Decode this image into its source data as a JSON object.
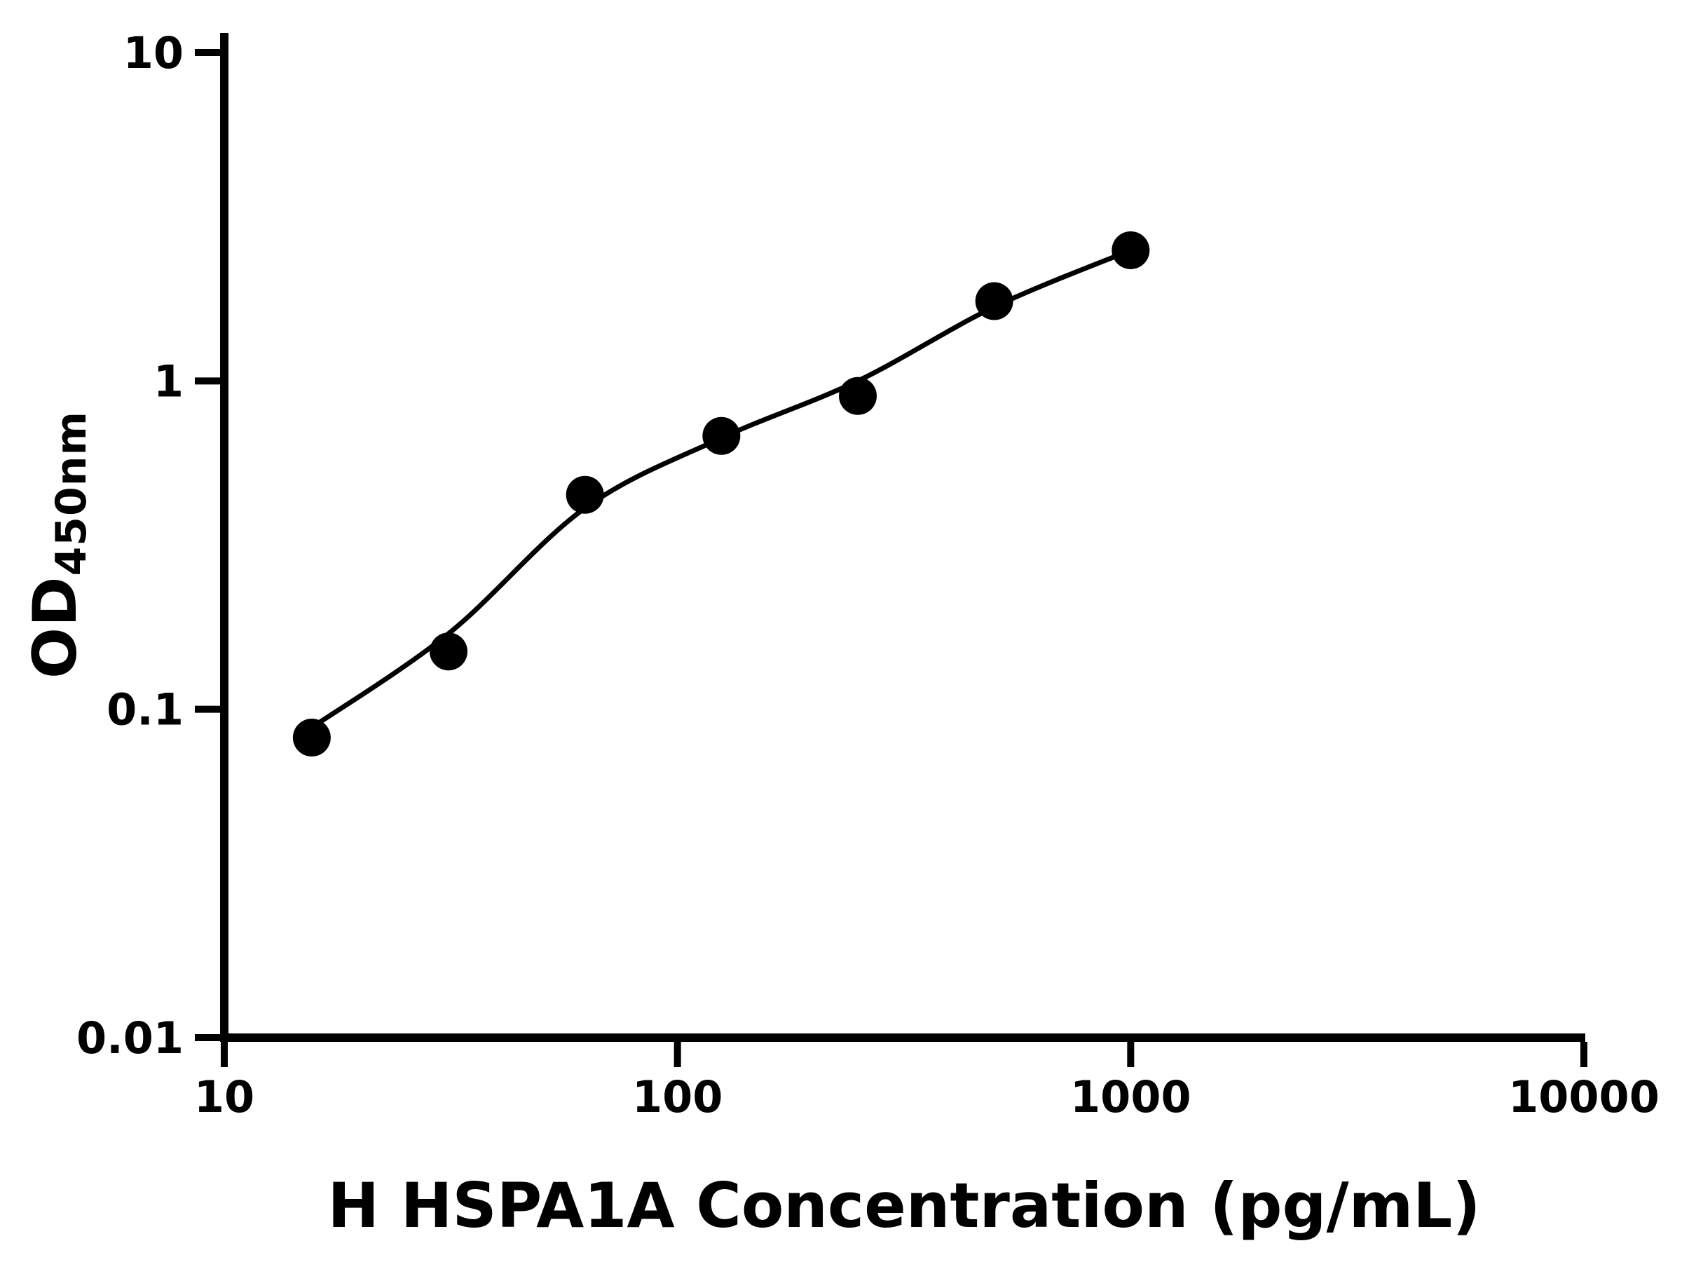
{
  "chart_data": {
    "type": "scatter",
    "title": "",
    "xlabel": "H HSPA1A Concentration (pg/mL)",
    "ylabel_main": "OD",
    "ylabel_sub": "450nm",
    "x_scale": "log",
    "y_scale": "log",
    "xlim": [
      10,
      10000
    ],
    "ylim": [
      0.01,
      10
    ],
    "grid": false,
    "legend_position": "none",
    "x_ticks": [
      {
        "value": 10,
        "label": "10"
      },
      {
        "value": 100,
        "label": "100"
      },
      {
        "value": 1000,
        "label": "1000"
      },
      {
        "value": 10000,
        "label": "10000"
      }
    ],
    "y_ticks": [
      {
        "value": 0.01,
        "label": "0.01"
      },
      {
        "value": 0.1,
        "label": "0.1"
      },
      {
        "value": 1,
        "label": "1"
      },
      {
        "value": 10,
        "label": "10"
      }
    ],
    "series": [
      {
        "name": "standard-points",
        "type": "scatter",
        "marker": "circle",
        "x": [
          15.6,
          31.25,
          62.5,
          125,
          250,
          500,
          1000
        ],
        "y": [
          0.082,
          0.15,
          0.45,
          0.68,
          0.9,
          1.75,
          2.5
        ]
      }
    ],
    "fit_curve": {
      "name": "four-parameter-fit",
      "x": [
        15.6,
        31.25,
        62.5,
        125,
        250,
        500,
        1000
      ],
      "y": [
        0.088,
        0.17,
        0.41,
        0.67,
        1.0,
        1.68,
        2.5
      ]
    },
    "colors": {
      "points": "#000000",
      "curve": "#000000",
      "axis": "#000000",
      "tick_labels": "#000000",
      "background": "#ffffff"
    }
  }
}
